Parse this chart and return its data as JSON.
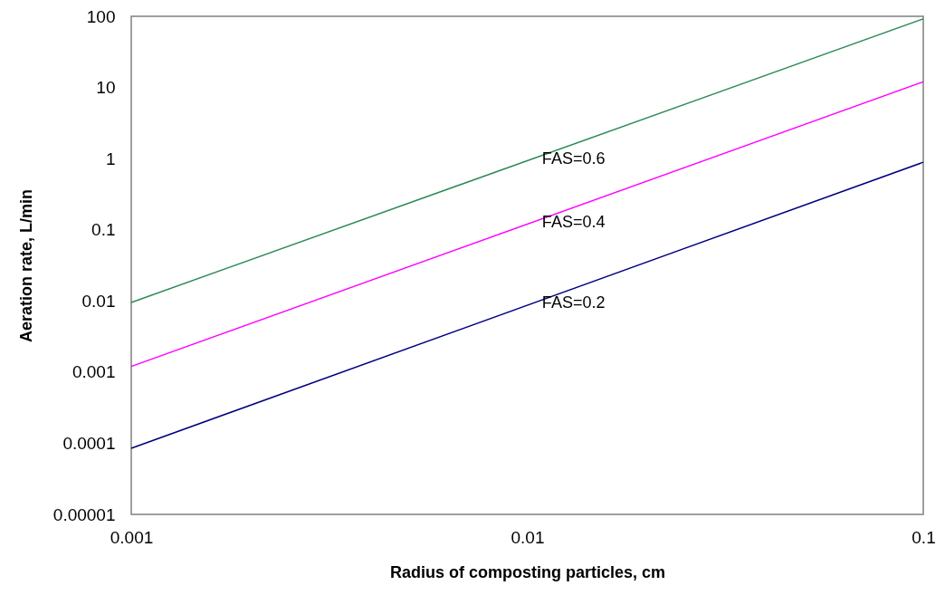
{
  "chart_data": {
    "type": "line",
    "xlabel": "Radius of composting particles, cm",
    "ylabel": "Aeration rate, L/min",
    "log": "xy",
    "grid": false,
    "marker": "none",
    "line_style": "solid",
    "x": [
      0.001,
      0.1
    ],
    "xlim": [
      0.001,
      0.1
    ],
    "xticks": [
      0.001,
      0.01,
      0.1
    ],
    "ylim": [
      1e-05,
      100
    ],
    "yticks": [
      {
        "value": 1e-05,
        "label": "0.00001"
      },
      0.0001,
      0.001,
      0.01,
      0.1,
      1,
      10,
      100
    ],
    "series": [
      {
        "name": "FAS=0.6",
        "color": "#2e8b57",
        "values": [
          0.0095,
          92
        ]
      },
      {
        "name": "FAS=0.4",
        "color": "#ff00ff",
        "values": [
          0.0012,
          12
        ]
      },
      {
        "name": "FAS=0.2",
        "color": "#000080",
        "values": [
          8.5e-05,
          0.89
        ]
      }
    ]
  }
}
